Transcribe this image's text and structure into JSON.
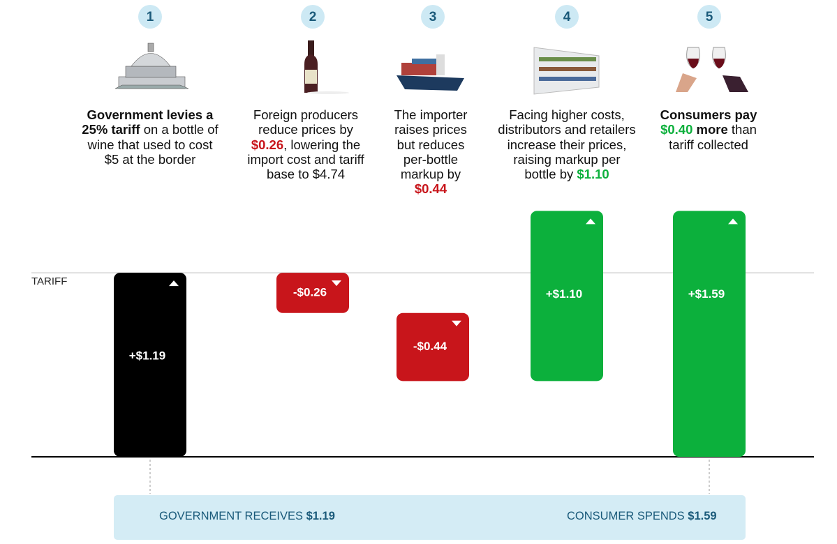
{
  "chart_data": {
    "type": "waterfall",
    "categories": [
      "1",
      "2",
      "3",
      "4",
      "5"
    ],
    "descriptions": [
      [
        "Government levies a 25% tariff",
        " on a bottle of wine that used to cost $5 at the border"
      ],
      [
        "Foreign producers reduce prices by ",
        "$0.26",
        ", lowering the import cost and tariff base to $4.74"
      ],
      [
        "The importer raises prices but reduces per-bottle markup by ",
        "$0.44"
      ],
      [
        "Facing higher costs, distributors and retailers increase their prices, raising markup per bottle by ",
        "$1.10"
      ],
      [
        "Consumers pay ",
        "$0.40",
        " more",
        " than tariff collected"
      ]
    ],
    "values": [
      1.19,
      -0.26,
      -0.44,
      1.1,
      1.59
    ],
    "value_labels": [
      "+$1.19",
      "-$0.26",
      "-$0.44",
      "+$1.10",
      "+$1.59"
    ],
    "colors": [
      "#000000",
      "#c8151b",
      "#c8151b",
      "#0cb03c",
      "#0cb03c"
    ],
    "ylim": [
      0,
      1.7
    ],
    "reference_line": {
      "label": "TARIFF"
    },
    "summary": [
      {
        "label": "GOVERNMENT RECEIVES ",
        "value_label": "$1.19"
      },
      {
        "label": "CONSUMER SPENDS ",
        "value_label": "$1.59"
      }
    ]
  }
}
